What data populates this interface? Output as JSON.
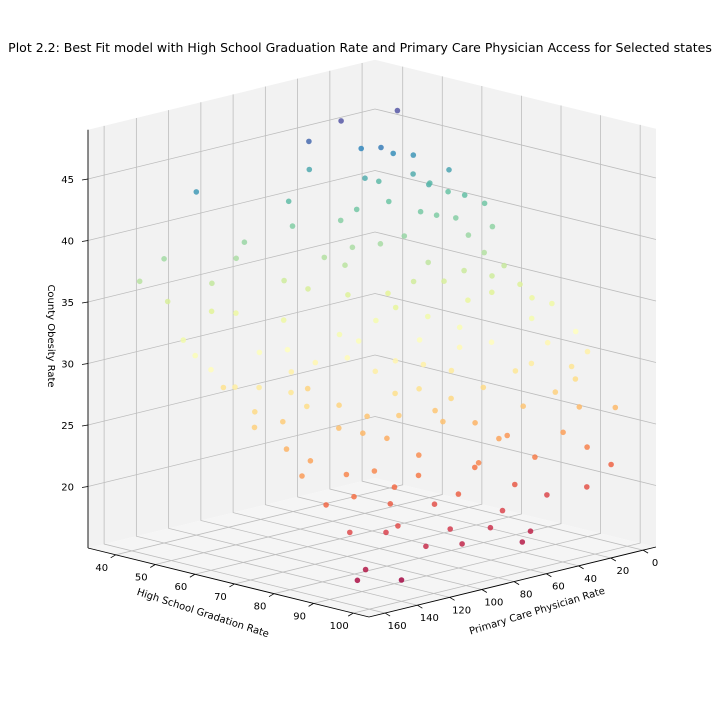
{
  "chart_data": {
    "type": "scatter",
    "projection": "3d",
    "title": "Plot 2.2: Best Fit model with High School Graduation Rate and Primary Care Physician Access for Selected states",
    "xlabel": "High School Gradation Rate",
    "ylabel": "Primary Care Physician Rate",
    "zlabel": "County Obesity Rate",
    "x_ticks": [
      40,
      50,
      60,
      70,
      80,
      90,
      100
    ],
    "y_ticks": [
      0,
      20,
      40,
      60,
      80,
      100,
      120,
      140,
      160
    ],
    "z_ticks": [
      20,
      25,
      30,
      35,
      40,
      45
    ],
    "xlim": [
      33,
      104
    ],
    "ylim": [
      -8,
      170
    ],
    "zlim": [
      15,
      49
    ],
    "grid": true,
    "colormap": "Spectral",
    "color_by": "z",
    "points": [
      [
        44,
        40,
        46.5
      ],
      [
        46,
        10,
        46.5
      ],
      [
        44,
        60,
        45.5
      ],
      [
        50,
        30,
        44.5
      ],
      [
        45,
        30,
        44.0
      ],
      [
        52,
        15,
        42.0
      ],
      [
        40,
        120,
        43.0
      ],
      [
        38,
        45,
        42.2
      ],
      [
        48,
        35,
        42.0
      ],
      [
        47,
        24,
        41.3
      ],
      [
        55,
        12,
        41.4
      ],
      [
        58,
        8,
        40.8
      ],
      [
        45,
        75,
        41.2
      ],
      [
        52,
        50,
        40.3
      ],
      [
        60,
        30,
        40.1
      ],
      [
        64,
        18,
        39.5
      ],
      [
        48,
        80,
        39.6
      ],
      [
        62,
        45,
        38.8
      ],
      [
        70,
        10,
        39.0
      ],
      [
        55,
        60,
        37.8
      ],
      [
        40,
        140,
        38.2
      ],
      [
        72,
        20,
        37.4
      ],
      [
        58,
        72,
        37.0
      ],
      [
        66,
        40,
        36.8
      ],
      [
        68,
        54,
        35.9
      ],
      [
        75,
        15,
        36.4
      ],
      [
        52,
        95,
        36.0
      ],
      [
        62,
        80,
        35.2
      ],
      [
        78,
        30,
        35.0
      ],
      [
        70,
        70,
        34.5
      ],
      [
        45,
        150,
        35.5
      ],
      [
        80,
        10,
        34.0
      ],
      [
        58,
        110,
        33.8
      ],
      [
        72,
        55,
        33.4
      ],
      [
        84,
        20,
        33.0
      ],
      [
        66,
        95,
        32.8
      ],
      [
        76,
        45,
        32.5
      ],
      [
        60,
        130,
        32.0
      ],
      [
        82,
        40,
        31.6
      ],
      [
        70,
        100,
        31.4
      ],
      [
        86,
        15,
        31.0
      ],
      [
        74,
        80,
        30.8
      ],
      [
        64,
        120,
        30.4
      ],
      [
        88,
        30,
        30.0
      ],
      [
        80,
        60,
        29.8
      ],
      [
        68,
        130,
        29.4
      ],
      [
        90,
        10,
        29.2
      ],
      [
        78,
        90,
        28.8
      ],
      [
        84,
        50,
        28.4
      ],
      [
        72,
        110,
        28.0
      ],
      [
        92,
        25,
        27.8
      ],
      [
        82,
        75,
        27.2
      ],
      [
        76,
        120,
        26.8
      ],
      [
        94,
        15,
        26.4
      ],
      [
        86,
        60,
        26.0
      ],
      [
        80,
        100,
        25.6
      ],
      [
        96,
        30,
        25.0
      ],
      [
        88,
        45,
        24.6
      ],
      [
        84,
        90,
        24.2
      ],
      [
        98,
        20,
        23.6
      ],
      [
        90,
        70,
        23.0
      ],
      [
        86,
        110,
        22.4
      ],
      [
        100,
        10,
        22.0
      ],
      [
        94,
        55,
        21.4
      ],
      [
        90,
        95,
        20.8
      ],
      [
        96,
        40,
        20.2
      ],
      [
        92,
        130,
        19.8
      ],
      [
        98,
        80,
        19.0
      ],
      [
        100,
        60,
        18.2
      ],
      [
        95,
        150,
        17.6
      ],
      [
        60,
        100,
        28.0
      ],
      [
        55,
        140,
        29.0
      ],
      [
        65,
        70,
        33.0
      ],
      [
        75,
        100,
        27.0
      ],
      [
        85,
        120,
        24.0
      ],
      [
        70,
        140,
        27.5
      ],
      [
        62,
        150,
        30.0
      ],
      [
        50,
        120,
        34.0
      ],
      [
        56,
        90,
        35.5
      ],
      [
        68,
        20,
        38.5
      ],
      [
        74,
        35,
        34.2
      ],
      [
        78,
        110,
        26.2
      ],
      [
        88,
        100,
        23.2
      ],
      [
        82,
        130,
        23.8
      ],
      [
        92,
        60,
        25.2
      ],
      [
        66,
        110,
        31.0
      ],
      [
        72,
        130,
        28.6
      ],
      [
        58,
        50,
        38.0
      ],
      [
        54,
        35,
        40.6
      ],
      [
        62,
        25,
        39.8
      ],
      [
        76,
        25,
        36.0
      ],
      [
        80,
        80,
        29.0
      ],
      [
        86,
        80,
        26.8
      ],
      [
        90,
        40,
        27.0
      ],
      [
        94,
        90,
        21.8
      ],
      [
        64,
        60,
        34.8
      ],
      [
        70,
        40,
        35.6
      ],
      [
        74,
        65,
        32.0
      ],
      [
        78,
        50,
        31.2
      ],
      [
        84,
        70,
        28.2
      ],
      [
        96,
        100,
        19.4
      ],
      [
        98,
        120,
        18.8
      ],
      [
        88,
        140,
        22.8
      ],
      [
        79,
        145,
        25.2
      ],
      [
        71,
        160,
        27.8
      ],
      [
        44,
        100,
        38.6
      ],
      [
        48,
        130,
        36.6
      ],
      [
        42,
        160,
        37.2
      ],
      [
        53,
        160,
        33.4
      ],
      [
        60,
        160,
        31.6
      ],
      [
        83,
        160,
        24.8
      ],
      [
        100,
        140,
        16.8
      ],
      [
        97,
        160,
        17.2
      ],
      [
        66,
        5,
        40.4
      ],
      [
        58,
        20,
        41.8
      ],
      [
        50,
        10,
        43.2
      ],
      [
        83,
        5,
        33.6
      ],
      [
        92,
        5,
        30.4
      ],
      [
        99,
        5,
        26.4
      ],
      [
        102,
        30,
        21.0
      ],
      [
        102,
        70,
        17.8
      ],
      [
        56,
        160,
        32.4
      ],
      [
        64,
        140,
        29.8
      ],
      [
        68,
        88,
        32.2
      ],
      [
        73,
        90,
        30.2
      ],
      [
        77,
        70,
        30.4
      ],
      [
        81,
        95,
        27.4
      ],
      [
        86,
        35,
        29.4
      ],
      [
        93,
        75,
        23.8
      ],
      [
        89,
        120,
        21.6
      ],
      [
        61,
        115,
        31.8
      ],
      [
        54,
        75,
        37.4
      ],
      [
        50,
        55,
        39.4
      ],
      [
        46,
        110,
        37.8
      ],
      [
        52,
        140,
        35.0
      ],
      [
        67,
        150,
        28.4
      ],
      [
        75,
        150,
        26.0
      ],
      [
        85,
        150,
        22.2
      ],
      [
        91,
        150,
        20.4
      ],
      [
        95,
        130,
        20.6
      ],
      [
        99,
        100,
        18.4
      ],
      [
        97,
        70,
        20.0
      ],
      [
        95,
        45,
        23.4
      ],
      [
        93,
        15,
        28.6
      ],
      [
        89,
        5,
        31.8
      ],
      [
        79,
        15,
        35.2
      ],
      [
        71,
        30,
        36.2
      ],
      [
        63,
        10,
        41.0
      ],
      [
        57,
        5,
        42.4
      ],
      [
        49,
        20,
        43.6
      ]
    ]
  }
}
